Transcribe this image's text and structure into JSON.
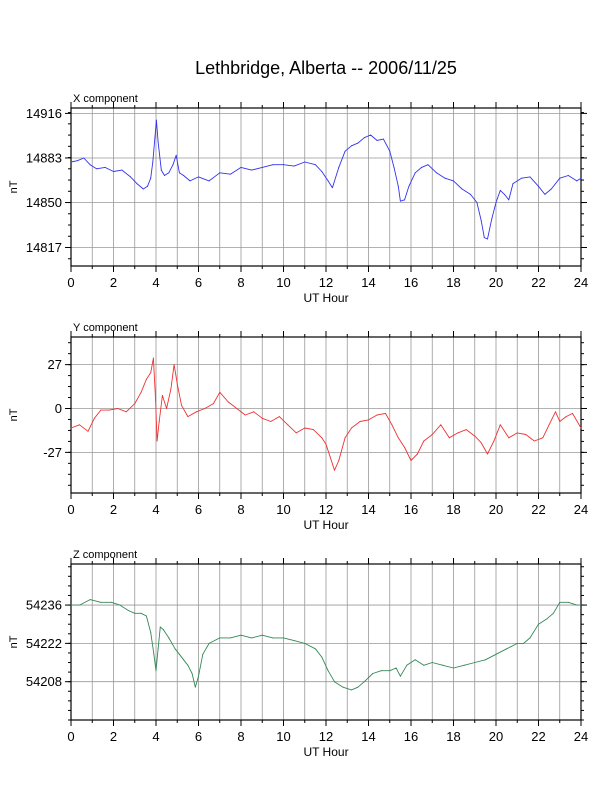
{
  "title": "Lethbridge, Alberta -- 2006/11/25",
  "chart_data": [
    {
      "type": "line",
      "panel_title": "X component",
      "xlabel": "UT Hour",
      "ylabel": "nT",
      "xlim": [
        0,
        24
      ],
      "ylim": [
        14803,
        14920
      ],
      "xticks": [
        0,
        2,
        4,
        6,
        8,
        10,
        12,
        14,
        16,
        18,
        20,
        22,
        24
      ],
      "yticks": [
        14816.7,
        14850,
        14883,
        14916
      ],
      "ytick_labels": [
        "14817",
        "14850",
        "14883",
        "14916"
      ],
      "grid": true,
      "color": "#3333ee",
      "series": [
        {
          "x": [
            0,
            0.3,
            0.6,
            0.9,
            1.2,
            1.6,
            2.0,
            2.4,
            2.8,
            3.1,
            3.4,
            3.6,
            3.75,
            3.85,
            3.95,
            4.02,
            4.1,
            4.25,
            4.4,
            4.6,
            4.8,
            4.95,
            5.1,
            5.3,
            5.6,
            6.0,
            6.5,
            7.0,
            7.5,
            8.0,
            8.5,
            9.0,
            9.5,
            10.0,
            10.5,
            11.0,
            11.5,
            11.8,
            12.1,
            12.3,
            12.6,
            12.9,
            13.2,
            13.5,
            13.8,
            14.1,
            14.4,
            14.7,
            15.0,
            15.2,
            15.4,
            15.5,
            15.7,
            15.9,
            16.2,
            16.5,
            16.8,
            17.2,
            17.6,
            18.0,
            18.4,
            18.8,
            19.1,
            19.3,
            19.45,
            19.6,
            19.8,
            20.0,
            20.2,
            20.4,
            20.6,
            20.8,
            21.2,
            21.6,
            22.0,
            22.3,
            22.6,
            23.0,
            23.4,
            23.8,
            24.0
          ],
          "y": [
            14880,
            14881,
            14883,
            14878,
            14875,
            14876,
            14873,
            14874,
            14869,
            14864,
            14860,
            14862,
            14868,
            14880,
            14898,
            14911,
            14895,
            14874,
            14870,
            14872,
            14878,
            14885,
            14872,
            14870,
            14866,
            14869,
            14866,
            14872,
            14871,
            14876,
            14874,
            14876,
            14878,
            14878,
            14877,
            14880,
            14878,
            14873,
            14866,
            14861,
            14876,
            14888,
            14892,
            14894,
            14898,
            14900,
            14896,
            14897,
            14888,
            14876,
            14862,
            14851,
            14852,
            14862,
            14872,
            14876,
            14878,
            14872,
            14868,
            14866,
            14860,
            14856,
            14850,
            14837,
            14824,
            14823,
            14838,
            14850,
            14859,
            14856,
            14852,
            14864,
            14868,
            14869,
            14862,
            14856,
            14860,
            14868,
            14870,
            14866,
            14868
          ]
        }
      ]
    },
    {
      "type": "line",
      "panel_title": "Y component",
      "xlabel": "UT Hour",
      "ylabel": "nT",
      "xlim": [
        0,
        24
      ],
      "ylim": [
        -52,
        44
      ],
      "xticks": [
        0,
        2,
        4,
        6,
        8,
        10,
        12,
        14,
        16,
        18,
        20,
        22,
        24
      ],
      "yticks": [
        -27,
        0,
        27
      ],
      "ytick_labels": [
        "-27",
        "0",
        "27"
      ],
      "grid": true,
      "color": "#ee3333",
      "series": [
        {
          "x": [
            0,
            0.4,
            0.8,
            1.1,
            1.4,
            1.8,
            2.2,
            2.6,
            3.0,
            3.3,
            3.55,
            3.75,
            3.88,
            3.98,
            4.05,
            4.15,
            4.3,
            4.5,
            4.7,
            4.85,
            5.0,
            5.2,
            5.5,
            5.9,
            6.3,
            6.7,
            7.0,
            7.4,
            7.8,
            8.2,
            8.6,
            9.0,
            9.4,
            9.8,
            10.2,
            10.6,
            11.0,
            11.4,
            11.8,
            12.0,
            12.2,
            12.4,
            12.6,
            12.9,
            13.2,
            13.6,
            14.0,
            14.4,
            14.8,
            15.1,
            15.4,
            15.7,
            16.0,
            16.3,
            16.6,
            17.0,
            17.4,
            17.8,
            18.2,
            18.6,
            19.0,
            19.3,
            19.6,
            19.9,
            20.2,
            20.6,
            21.0,
            21.4,
            21.8,
            22.2,
            22.5,
            22.8,
            23.0,
            23.3,
            23.6,
            24.0
          ],
          "y": [
            -12,
            -10,
            -14,
            -6,
            -1,
            -1,
            0,
            -2,
            3,
            10,
            18,
            22,
            31,
            5,
            -20,
            -8,
            8,
            0,
            12,
            27,
            15,
            2,
            -5,
            -2,
            0,
            3,
            10,
            4,
            0,
            -4,
            -2,
            -6,
            -8,
            -5,
            -10,
            -15,
            -12,
            -13,
            -18,
            -22,
            -30,
            -38,
            -32,
            -18,
            -12,
            -8,
            -7,
            -4,
            -3,
            -10,
            -18,
            -24,
            -32,
            -28,
            -20,
            -16,
            -10,
            -18,
            -15,
            -13,
            -17,
            -21,
            -28,
            -20,
            -10,
            -18,
            -15,
            -16,
            -20,
            -18,
            -10,
            -2,
            -8,
            -5,
            -3,
            -12
          ]
        }
      ]
    },
    {
      "type": "line",
      "panel_title": "Z component",
      "xlabel": "UT Hour",
      "ylabel": "nT",
      "xlim": [
        0,
        24
      ],
      "ylim": [
        54194,
        54251
      ],
      "xticks": [
        0,
        2,
        4,
        6,
        8,
        10,
        12,
        14,
        16,
        18,
        20,
        22,
        24
      ],
      "yticks": [
        54208,
        54222,
        54236
      ],
      "ytick_labels": [
        "54208",
        "54222",
        "54236"
      ],
      "grid": true,
      "color": "#338855",
      "series": [
        {
          "x": [
            0,
            0.4,
            0.9,
            1.4,
            1.9,
            2.3,
            2.7,
            3.0,
            3.3,
            3.55,
            3.75,
            3.9,
            4.0,
            4.1,
            4.2,
            4.35,
            4.6,
            4.9,
            5.1,
            5.3,
            5.5,
            5.7,
            5.85,
            6.0,
            6.2,
            6.5,
            7.0,
            7.5,
            8.0,
            8.5,
            9.0,
            9.5,
            10.0,
            10.5,
            11.0,
            11.5,
            11.8,
            12.1,
            12.4,
            12.8,
            13.2,
            13.5,
            13.8,
            14.2,
            14.6,
            15.0,
            15.3,
            15.5,
            15.8,
            16.2,
            16.6,
            17.0,
            17.5,
            18.0,
            18.5,
            19.0,
            19.5,
            20.0,
            20.5,
            21.0,
            21.3,
            21.6,
            22.0,
            22.4,
            22.7,
            23.0,
            23.4,
            23.8,
            24.0
          ],
          "y": [
            54236,
            54236,
            54238,
            54237,
            54237,
            54236,
            54234,
            54233,
            54233,
            54232,
            54226,
            54218,
            54212,
            54220,
            54228,
            54227,
            54224,
            54220,
            54218,
            54216,
            54214,
            54211,
            54206,
            54210,
            54218,
            54222,
            54224,
            54224,
            54225,
            54224,
            54225,
            54224,
            54224,
            54223,
            54222,
            54220,
            54217,
            54212,
            54208,
            54206,
            54205,
            54206,
            54208,
            54211,
            54212,
            54212,
            54213,
            54210,
            54214,
            54216,
            54214,
            54215,
            54214,
            54213,
            54214,
            54215,
            54216,
            54218,
            54220,
            54222,
            54222,
            54224,
            54229,
            54231,
            54233,
            54237,
            54237,
            54236,
            54236
          ]
        }
      ]
    }
  ]
}
